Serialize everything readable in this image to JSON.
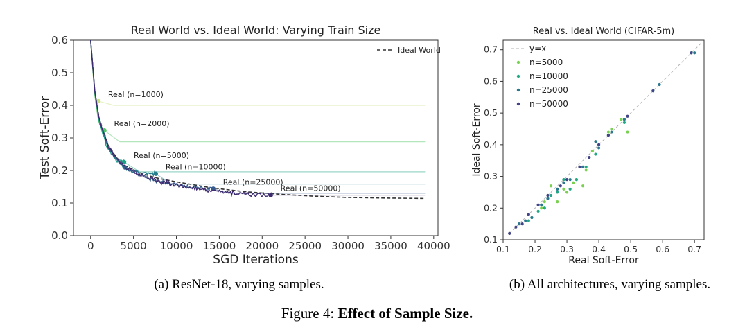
{
  "captions": {
    "a": "(a) ResNet-18, varying samples.",
    "b": "(b) All architectures, varying samples.",
    "figure_label": "Figure 4:",
    "figure_title": "Effect of Sample Size."
  },
  "chart_data": [
    {
      "type": "line",
      "title": "Real World vs. Ideal World: Varying Train Size",
      "xlabel": "SGD Iterations",
      "ylabel": "Test Soft-Error",
      "xlim": [
        -2000,
        40500
      ],
      "ylim": [
        0,
        0.6
      ],
      "xticks": [
        0,
        5000,
        10000,
        15000,
        20000,
        25000,
        30000,
        35000,
        40000
      ],
      "yticks": [
        0.0,
        0.1,
        0.2,
        0.3,
        0.4,
        0.5,
        0.6
      ],
      "legend": {
        "position": "top-right",
        "entries": [
          "Ideal World"
        ]
      },
      "grid": false,
      "ideal": {
        "name": "Ideal World",
        "color": "#333333",
        "x": [
          0,
          500,
          1000,
          2000,
          3000,
          4000,
          6000,
          8000,
          10000,
          14000,
          18000,
          22000,
          26000,
          30000,
          35000,
          39000
        ],
        "y": [
          0.6,
          0.44,
          0.36,
          0.28,
          0.24,
          0.215,
          0.19,
          0.175,
          0.165,
          0.147,
          0.135,
          0.127,
          0.121,
          0.117,
          0.115,
          0.114
        ]
      },
      "series": [
        {
          "label": "Real (n=1000)",
          "color": "#c5e37a",
          "marker": [
            900,
            0.413
          ],
          "plateau": 0.4
        },
        {
          "label": "Real (n=2000)",
          "color": "#58c76a",
          "marker": [
            1600,
            0.323
          ],
          "plateau": 0.288
        },
        {
          "label": "Real (n=5000)",
          "color": "#1fa187",
          "marker": [
            3900,
            0.226
          ],
          "plateau": 0.196
        },
        {
          "label": "Real (n=10000)",
          "color": "#277f8e",
          "marker": [
            7600,
            0.19
          ],
          "plateau": 0.158
        },
        {
          "label": "Real (n=25000)",
          "color": "#365c8d",
          "marker": [
            14300,
            0.144
          ],
          "plateau": 0.13
        },
        {
          "label": "Real (n=50000)",
          "color": "#3e2b6f",
          "marker": [
            21000,
            0.124
          ],
          "plateau": 0.124
        }
      ]
    },
    {
      "type": "scatter",
      "title": "Real vs. Ideal World (CIFAR-5m)",
      "xlabel": "Real Soft-Error",
      "ylabel": "Ideal Soft-Error",
      "xlim": [
        0.1,
        0.73
      ],
      "ylim": [
        0.1,
        0.73
      ],
      "xticks": [
        0.1,
        0.2,
        0.3,
        0.4,
        0.5,
        0.6,
        0.7
      ],
      "yticks": [
        0.1,
        0.2,
        0.3,
        0.4,
        0.5,
        0.6,
        0.7
      ],
      "grid": false,
      "legend": {
        "position": "top-left",
        "entries": [
          "y=x",
          "n=5000",
          "n=10000",
          "n=25000",
          "n=50000"
        ]
      },
      "reference_line": {
        "label": "y=x",
        "color": "#b0b0b0"
      },
      "series": [
        {
          "name": "n=5000",
          "color": "#7ad151",
          "points": [
            [
              0.22,
              0.2
            ],
            [
              0.23,
              0.22
            ],
            [
              0.25,
              0.27
            ],
            [
              0.27,
              0.22
            ],
            [
              0.29,
              0.26
            ],
            [
              0.3,
              0.25
            ],
            [
              0.32,
              0.28
            ],
            [
              0.33,
              0.29
            ],
            [
              0.35,
              0.27
            ],
            [
              0.36,
              0.32
            ],
            [
              0.38,
              0.38
            ],
            [
              0.43,
              0.44
            ],
            [
              0.44,
              0.45
            ],
            [
              0.49,
              0.44
            ],
            [
              0.47,
              0.48
            ],
            [
              0.19,
              0.17
            ]
          ]
        },
        {
          "name": "n=10000",
          "color": "#22a884",
          "points": [
            [
              0.18,
              0.16
            ],
            [
              0.21,
              0.19
            ],
            [
              0.23,
              0.2
            ],
            [
              0.25,
              0.24
            ],
            [
              0.27,
              0.25
            ],
            [
              0.29,
              0.29
            ],
            [
              0.31,
              0.26
            ],
            [
              0.33,
              0.29
            ],
            [
              0.36,
              0.33
            ],
            [
              0.39,
              0.37
            ],
            [
              0.43,
              0.43
            ],
            [
              0.48,
              0.47
            ],
            [
              0.57,
              0.57
            ],
            [
              0.69,
              0.69
            ]
          ]
        },
        {
          "name": "n=25000",
          "color": "#2a788e",
          "points": [
            [
              0.15,
              0.15
            ],
            [
              0.17,
              0.16
            ],
            [
              0.19,
              0.17
            ],
            [
              0.22,
              0.21
            ],
            [
              0.24,
              0.23
            ],
            [
              0.27,
              0.26
            ],
            [
              0.29,
              0.28
            ],
            [
              0.31,
              0.29
            ],
            [
              0.35,
              0.33
            ],
            [
              0.39,
              0.41
            ],
            [
              0.4,
              0.39
            ],
            [
              0.44,
              0.44
            ],
            [
              0.48,
              0.48
            ],
            [
              0.59,
              0.59
            ],
            [
              0.7,
              0.69
            ]
          ]
        },
        {
          "name": "n=50000",
          "color": "#414487",
          "points": [
            [
              0.12,
              0.12
            ],
            [
              0.14,
              0.14
            ],
            [
              0.16,
              0.15
            ],
            [
              0.18,
              0.18
            ],
            [
              0.21,
              0.21
            ],
            [
              0.24,
              0.24
            ],
            [
              0.28,
              0.27
            ],
            [
              0.3,
              0.29
            ],
            [
              0.34,
              0.33
            ],
            [
              0.37,
              0.36
            ],
            [
              0.4,
              0.4
            ],
            [
              0.43,
              0.43
            ],
            [
              0.49,
              0.49
            ],
            [
              0.57,
              0.57
            ],
            [
              0.69,
              0.69
            ]
          ]
        }
      ]
    }
  ]
}
